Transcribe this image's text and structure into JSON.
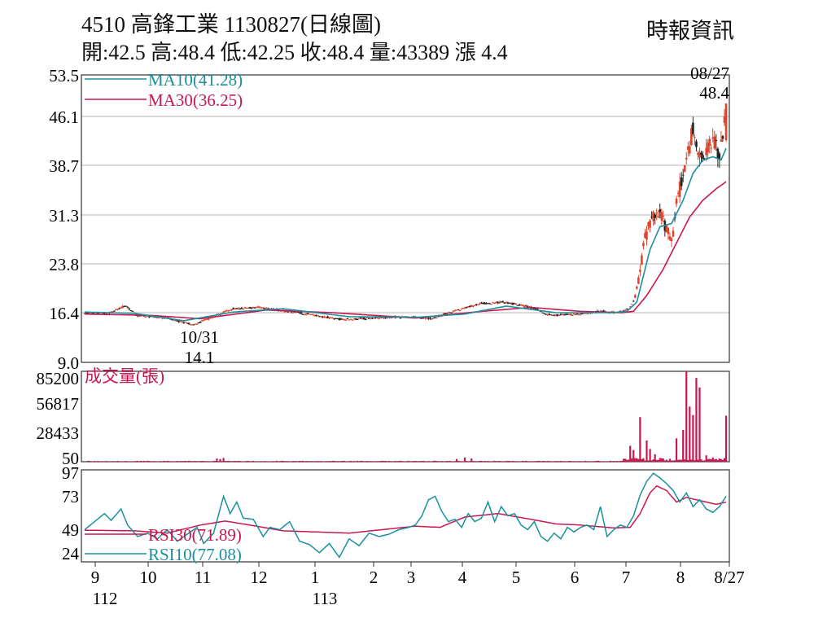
{
  "header": {
    "title": "4510  高鋒工業 1130827(日線圖)",
    "source": "時報資訊",
    "ohlc": "開:42.5 高:48.4 低:42.25 收:48.4 量:43389 漲 4.4"
  },
  "colors": {
    "up": "#e0452b",
    "down": "#222222",
    "ma10": "#1a8f9e",
    "ma30": "#c8174f",
    "volume": "#c8174f",
    "rsi30": "#c8174f",
    "rsi10": "#1a8f9e",
    "grid": "#b4b4b4",
    "frame": "#333333"
  },
  "chart_data": [
    {
      "type": "candlestick",
      "ylim": [
        9.0,
        53.5
      ],
      "yticks": [
        "53.5",
        "46.1",
        "38.7",
        "31.3",
        "23.8",
        "16.4",
        "9.0"
      ],
      "legend": [
        {
          "label": "MA10(41.28)",
          "color": "#1a8f9e"
        },
        {
          "label": "MA30(36.25)",
          "color": "#c8174f"
        }
      ],
      "annotations": [
        {
          "label": "08/27",
          "value": "48.4",
          "position": "top-right"
        },
        {
          "label": "10/31",
          "value": "14.1",
          "position": "low-point"
        }
      ],
      "anchors": [
        [
          0,
          16.4
        ],
        [
          14,
          16.2
        ],
        [
          25,
          17.5
        ],
        [
          32,
          16.0
        ],
        [
          50,
          15.6
        ],
        [
          66,
          14.6
        ],
        [
          78,
          15.8
        ],
        [
          90,
          17.0
        ],
        [
          105,
          17.2
        ],
        [
          118,
          16.8
        ],
        [
          135,
          16.2
        ],
        [
          155,
          15.4
        ],
        [
          175,
          15.6
        ],
        [
          195,
          15.8
        ],
        [
          210,
          15.5
        ],
        [
          223,
          16.6
        ],
        [
          240,
          17.8
        ],
        [
          255,
          18.0
        ],
        [
          270,
          17.2
        ],
        [
          282,
          16.0
        ],
        [
          298,
          16.2
        ],
        [
          312,
          16.6
        ],
        [
          322,
          16.4
        ],
        [
          329,
          17.0
        ],
        [
          333,
          18.5
        ],
        [
          337,
          24.0
        ],
        [
          339,
          27.5
        ],
        [
          342,
          30.0
        ],
        [
          346,
          32.0
        ],
        [
          350,
          31.0
        ],
        [
          352,
          29.0
        ],
        [
          356,
          27.5
        ],
        [
          358,
          33.0
        ],
        [
          362,
          37.0
        ],
        [
          365,
          40.5
        ],
        [
          368,
          44.0
        ],
        [
          371,
          41.0
        ],
        [
          375,
          39.5
        ],
        [
          378,
          41.5
        ],
        [
          381,
          42.0
        ],
        [
          384,
          40.5
        ],
        [
          386,
          42.5
        ],
        [
          388,
          48.4
        ]
      ],
      "ma10_anchors": [
        [
          0,
          16.5
        ],
        [
          30,
          16.3
        ],
        [
          60,
          15.2
        ],
        [
          90,
          16.5
        ],
        [
          120,
          17.0
        ],
        [
          160,
          15.8
        ],
        [
          200,
          15.7
        ],
        [
          230,
          16.2
        ],
        [
          255,
          17.4
        ],
        [
          285,
          16.4
        ],
        [
          320,
          16.4
        ],
        [
          328,
          16.6
        ],
        [
          334,
          18.0
        ],
        [
          338,
          22.0
        ],
        [
          342,
          26.0
        ],
        [
          348,
          29.5
        ],
        [
          355,
          30.0
        ],
        [
          362,
          33.5
        ],
        [
          368,
          37.5
        ],
        [
          374,
          39.5
        ],
        [
          380,
          40.0
        ],
        [
          385,
          39.5
        ],
        [
          388,
          41.28
        ]
      ],
      "ma30_anchors": [
        [
          0,
          16.2
        ],
        [
          40,
          16.0
        ],
        [
          70,
          15.5
        ],
        [
          110,
          16.8
        ],
        [
          150,
          16.4
        ],
        [
          200,
          15.6
        ],
        [
          240,
          16.6
        ],
        [
          270,
          17.2
        ],
        [
          300,
          16.6
        ],
        [
          325,
          16.4
        ],
        [
          332,
          16.6
        ],
        [
          340,
          19.0
        ],
        [
          350,
          23.0
        ],
        [
          358,
          27.0
        ],
        [
          366,
          31.0
        ],
        [
          374,
          33.5
        ],
        [
          382,
          35.2
        ],
        [
          388,
          36.25
        ]
      ]
    },
    {
      "type": "bar",
      "title": "成交量(張)",
      "ylim": [
        0,
        85200
      ],
      "yticks": [
        "85200",
        "56817",
        "28433",
        "50"
      ],
      "spikes": [
        [
          80,
          3000
        ],
        [
          82,
          2500
        ],
        [
          84,
          3500
        ],
        [
          225,
          2500
        ],
        [
          230,
          4000
        ],
        [
          234,
          3000
        ],
        [
          330,
          15000
        ],
        [
          332,
          11000
        ],
        [
          336,
          42000
        ],
        [
          340,
          20000
        ],
        [
          342,
          12000
        ],
        [
          345,
          7000
        ],
        [
          348,
          3500
        ],
        [
          358,
          22000
        ],
        [
          362,
          30000
        ],
        [
          364,
          85200
        ],
        [
          366,
          52000
        ],
        [
          368,
          44000
        ],
        [
          370,
          79000
        ],
        [
          372,
          70000
        ],
        [
          376,
          6000
        ],
        [
          380,
          4000
        ],
        [
          384,
          3000
        ],
        [
          388,
          43389
        ]
      ]
    },
    {
      "type": "line",
      "ylim": [
        20,
        100
      ],
      "yticks": [
        "97",
        "73",
        "49",
        "24"
      ],
      "legend": [
        {
          "label": "RSI30(71.89)",
          "color": "#c8174f"
        },
        {
          "label": "RSI10(77.08)",
          "color": "#1a8f9e"
        }
      ],
      "rsi30_anchors": [
        [
          0,
          47.5
        ],
        [
          30,
          47.0
        ],
        [
          50,
          45.0
        ],
        [
          70,
          52.0
        ],
        [
          85,
          55.5
        ],
        [
          100,
          52.0
        ],
        [
          120,
          47.0
        ],
        [
          140,
          46.0
        ],
        [
          160,
          45.0
        ],
        [
          180,
          48.0
        ],
        [
          200,
          51.0
        ],
        [
          215,
          50.0
        ],
        [
          230,
          59.0
        ],
        [
          250,
          62.0
        ],
        [
          270,
          57.0
        ],
        [
          285,
          53.0
        ],
        [
          300,
          52.0
        ],
        [
          320,
          49.5
        ],
        [
          330,
          50.0
        ],
        [
          336,
          62.0
        ],
        [
          342,
          80.0
        ],
        [
          346,
          86.0
        ],
        [
          352,
          82.0
        ],
        [
          358,
          72.0
        ],
        [
          364,
          76.0
        ],
        [
          370,
          74.0
        ],
        [
          376,
          72.0
        ],
        [
          382,
          70.0
        ],
        [
          388,
          71.89
        ]
      ],
      "rsi10_anchors": [
        [
          0,
          48
        ],
        [
          6,
          55
        ],
        [
          12,
          62
        ],
        [
          16,
          56
        ],
        [
          22,
          66
        ],
        [
          26,
          52
        ],
        [
          32,
          42
        ],
        [
          38,
          45
        ],
        [
          44,
          40
        ],
        [
          50,
          48
        ],
        [
          56,
          38
        ],
        [
          62,
          44
        ],
        [
          68,
          50
        ],
        [
          72,
          36
        ],
        [
          78,
          45
        ],
        [
          84,
          77
        ],
        [
          88,
          62
        ],
        [
          92,
          72
        ],
        [
          96,
          58
        ],
        [
          102,
          57
        ],
        [
          108,
          42
        ],
        [
          112,
          50
        ],
        [
          118,
          48
        ],
        [
          124,
          55
        ],
        [
          130,
          38
        ],
        [
          136,
          35
        ],
        [
          142,
          28
        ],
        [
          148,
          36
        ],
        [
          154,
          24
        ],
        [
          160,
          40
        ],
        [
          166,
          34
        ],
        [
          172,
          45
        ],
        [
          178,
          42
        ],
        [
          184,
          44
        ],
        [
          190,
          48
        ],
        [
          196,
          50
        ],
        [
          200,
          52
        ],
        [
          204,
          60
        ],
        [
          208,
          74
        ],
        [
          212,
          77
        ],
        [
          216,
          64
        ],
        [
          220,
          55
        ],
        [
          224,
          57
        ],
        [
          228,
          50
        ],
        [
          232,
          62
        ],
        [
          236,
          55
        ],
        [
          240,
          58
        ],
        [
          244,
          72
        ],
        [
          248,
          55
        ],
        [
          252,
          68
        ],
        [
          256,
          60
        ],
        [
          260,
          62
        ],
        [
          264,
          52
        ],
        [
          268,
          48
        ],
        [
          272,
          55
        ],
        [
          276,
          42
        ],
        [
          280,
          38
        ],
        [
          284,
          45
        ],
        [
          288,
          40
        ],
        [
          292,
          50
        ],
        [
          296,
          46
        ],
        [
          300,
          50
        ],
        [
          304,
          52
        ],
        [
          308,
          48
        ],
        [
          312,
          68
        ],
        [
          316,
          42
        ],
        [
          320,
          48
        ],
        [
          324,
          52
        ],
        [
          328,
          50
        ],
        [
          332,
          60
        ],
        [
          336,
          78
        ],
        [
          340,
          90
        ],
        [
          344,
          97
        ],
        [
          348,
          93
        ],
        [
          352,
          88
        ],
        [
          356,
          82
        ],
        [
          360,
          72
        ],
        [
          364,
          80
        ],
        [
          368,
          68
        ],
        [
          372,
          74
        ],
        [
          376,
          66
        ],
        [
          380,
          63
        ],
        [
          384,
          68
        ],
        [
          388,
          77.08
        ]
      ]
    }
  ],
  "x_axis": {
    "months": [
      {
        "label": "9",
        "sub": "112"
      },
      {
        "label": "10"
      },
      {
        "label": "11"
      },
      {
        "label": "12"
      },
      {
        "label": "1",
        "sub": "113"
      },
      {
        "label": "2"
      },
      {
        "label": "3"
      },
      {
        "label": "4"
      },
      {
        "label": "5"
      },
      {
        "label": "6"
      },
      {
        "label": "7"
      },
      {
        "label": "8"
      },
      {
        "label": "8/27"
      }
    ]
  }
}
